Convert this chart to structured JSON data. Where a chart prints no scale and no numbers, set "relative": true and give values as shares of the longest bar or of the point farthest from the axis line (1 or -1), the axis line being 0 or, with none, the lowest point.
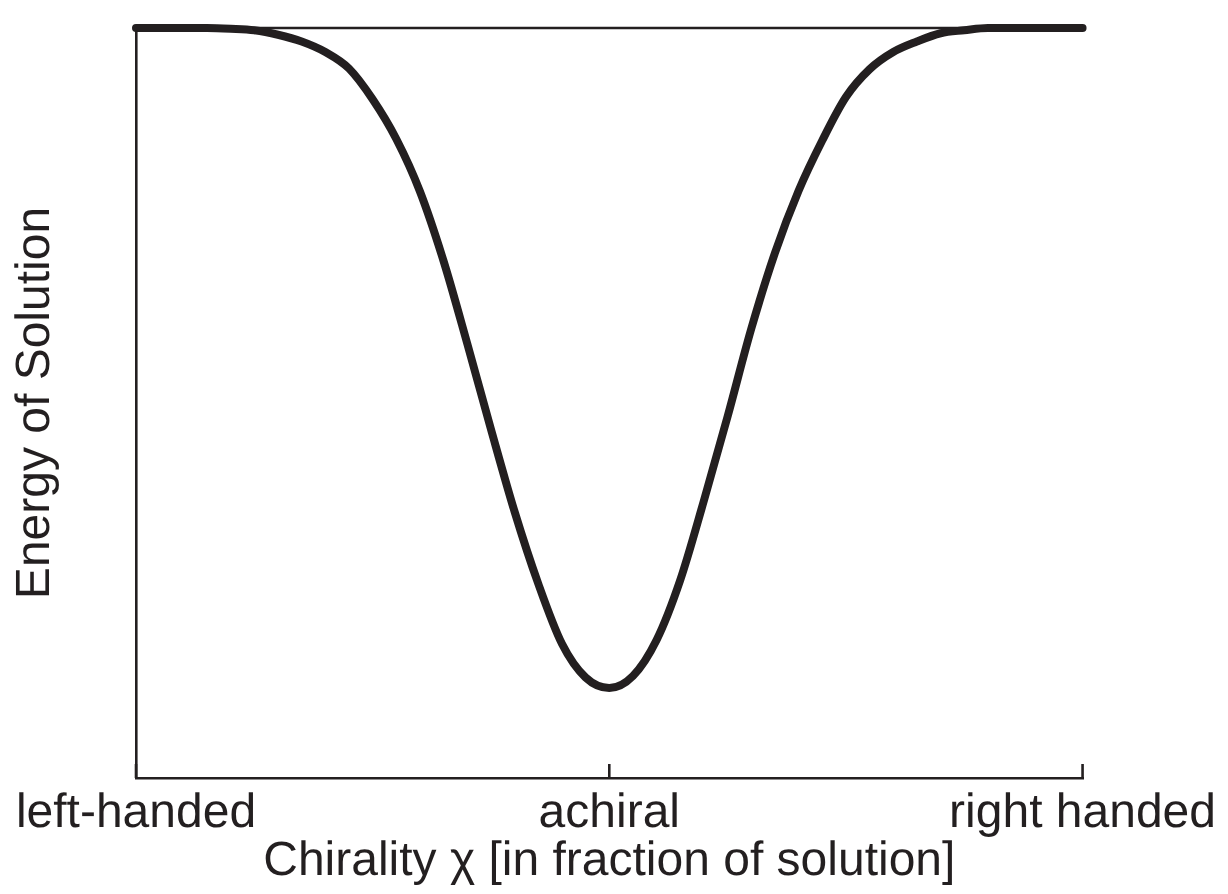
{
  "chart_data": {
    "type": "line",
    "xlabel": "Chirality χ [in fraction of solution]",
    "ylabel": "Energy of Solution",
    "categories": [
      "left-handed",
      null,
      null,
      null,
      null,
      null,
      null,
      null,
      null,
      null,
      null,
      null,
      null,
      null,
      null,
      null,
      null,
      null,
      null,
      null,
      "achiral",
      null,
      null,
      null,
      null,
      null,
      null,
      null,
      null,
      null,
      null,
      null,
      null,
      null,
      null,
      null,
      null,
      null,
      null,
      null,
      "right handed"
    ],
    "values": [
      1,
      1,
      1,
      1,
      0.999,
      0.997,
      0.991,
      0.982,
      0.968,
      0.946,
      0.905,
      0.852,
      0.782,
      0.689,
      0.579,
      0.465,
      0.355,
      0.259,
      0.179,
      0.134,
      0.12,
      0.136,
      0.184,
      0.264,
      0.37,
      0.482,
      0.599,
      0.7,
      0.783,
      0.85,
      0.908,
      0.945,
      0.968,
      0.982,
      0.993,
      0.997,
      1,
      1,
      1,
      1,
      1
    ],
    "color": "#231f20",
    "relative": true,
    "ref_lines": [
      {
        "axis": "y",
        "value": 1,
        "color": "#231f20"
      }
    ],
    "grid": false,
    "legend": false,
    "marker": "none",
    "line_style": "solid"
  }
}
